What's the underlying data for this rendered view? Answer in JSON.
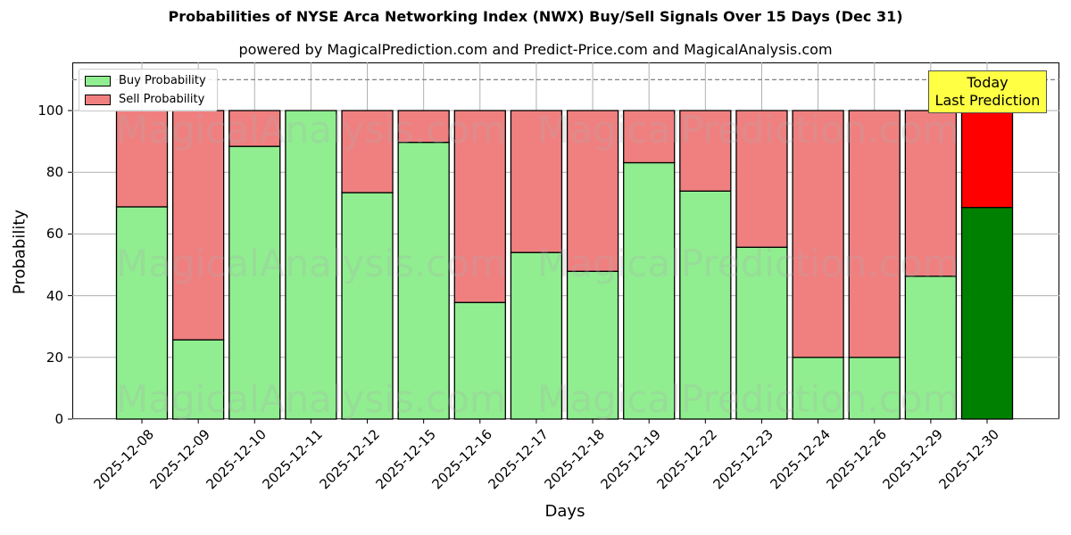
{
  "chart": {
    "title": "Probabilities of NYSE Arca Networking Index (NWX) Buy/Sell Signals Over 15 Days (Dec 31)",
    "subtitle": "powered by MagicalPrediction.com and Predict-Price.com and MagicalAnalysis.com",
    "xlabel": "Days",
    "ylabel": "Probability",
    "legend": [
      "Buy Probability",
      "Sell Probability"
    ],
    "annotation": [
      "Today",
      "Last Prediction"
    ],
    "watermarks": [
      "MagicalAnalysis.com",
      "MagicalPrediction.com"
    ],
    "colors": {
      "buy": "#90ee90",
      "sell": "#f08080",
      "buy_today": "#008000",
      "sell_today": "#ff0000",
      "annotation_bg": "#ffff44"
    }
  },
  "chart_data": {
    "type": "bar",
    "stacked": true,
    "title": "Probabilities of NYSE Arca Networking Index (NWX) Buy/Sell Signals Over 15 Days (Dec 31)",
    "subtitle": "powered by MagicalPrediction.com and Predict-Price.com and MagicalAnalysis.com",
    "xlabel": "Days",
    "ylabel": "Probability",
    "categories": [
      "2025-12-08",
      "2025-12-09",
      "2025-12-10",
      "2025-12-11",
      "2025-12-12",
      "2025-12-15",
      "2025-12-16",
      "2025-12-17",
      "2025-12-18",
      "2025-12-19",
      "2025-12-22",
      "2025-12-23",
      "2025-12-24",
      "2025-12-26",
      "2025-12-29",
      "2025-12-30"
    ],
    "series": [
      {
        "name": "Buy Probability",
        "values": [
          68.8,
          25.7,
          88.4,
          100.0,
          73.4,
          89.7,
          37.8,
          54.0,
          47.9,
          83.1,
          73.9,
          55.7,
          20.0,
          20.0,
          46.3,
          68.6
        ]
      },
      {
        "name": "Sell Probability",
        "values": [
          31.2,
          74.3,
          11.6,
          0.0,
          26.6,
          10.3,
          62.2,
          46.0,
          52.1,
          16.9,
          26.1,
          44.3,
          80.0,
          80.0,
          53.7,
          31.4
        ]
      }
    ],
    "yticks": [
      0,
      20,
      40,
      60,
      80,
      100
    ],
    "ylim": [
      0,
      115
    ],
    "reference_line": {
      "y": 110,
      "style": "dashed"
    },
    "grid": true,
    "legend_position": "upper left",
    "annotation": {
      "text": "Today\nLast Prediction",
      "position": "upper right"
    }
  }
}
